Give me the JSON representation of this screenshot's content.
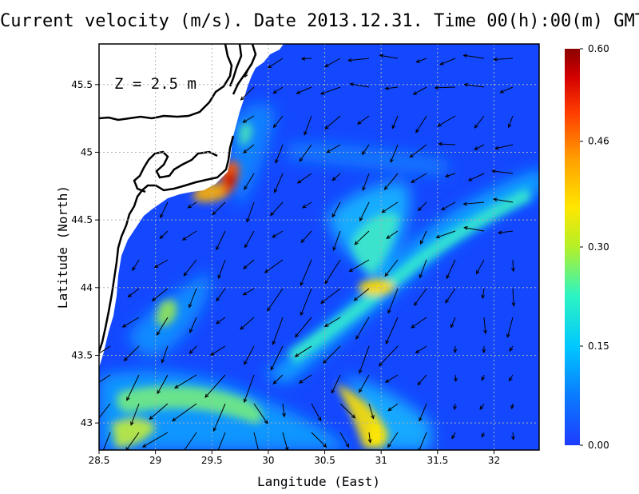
{
  "title": "Current velocity (m/s). Date 2013.12.31. Time 00(h):00(m) GMT",
  "depth_label": "Z = 2.5 m",
  "x_axis": {
    "label": "Langitude (East)",
    "ticks": [
      "28.5",
      "29",
      "29.5",
      "30",
      "30.5",
      "31",
      "31.5",
      "32"
    ],
    "range": [
      28.5,
      32.4
    ]
  },
  "y_axis": {
    "label": "Latitude (North)",
    "ticks": [
      "43",
      "43.5",
      "44",
      "44.5",
      "45",
      "45.5"
    ],
    "range": [
      42.8,
      45.8
    ]
  },
  "colorbar": {
    "ticks": [
      "0.00",
      "0.15",
      "0.30",
      "0.46",
      "0.60"
    ],
    "range": [
      0.0,
      0.6
    ],
    "colors": [
      "#1e3cff",
      "#0a78ff",
      "#00c8ff",
      "#2ef5c0",
      "#b4f028",
      "#ffe600",
      "#ffa000",
      "#ff3c00",
      "#d20000",
      "#8c0000"
    ]
  },
  "grid": true,
  "land_color": "#ffffff",
  "chart_data": {
    "type": "heatmap",
    "title": "Current velocity (m/s). Date 2013.12.31. Time 00(h):00(m) GMT",
    "xlabel": "Langitude (East)",
    "ylabel": "Latitude (North)",
    "xlim": [
      28.5,
      32.4
    ],
    "ylim": [
      42.8,
      45.8
    ],
    "zlim": [
      0.0,
      0.6
    ],
    "hotspots": [
      {
        "lon": 29.65,
        "lat": 44.75,
        "speed": 0.58
      },
      {
        "lon": 29.45,
        "lat": 44.68,
        "speed": 0.5
      },
      {
        "lon": 31.0,
        "lat": 44.0,
        "speed": 0.4
      },
      {
        "lon": 30.9,
        "lat": 42.95,
        "speed": 0.42
      },
      {
        "lon": 29.2,
        "lat": 43.2,
        "speed": 0.36
      }
    ]
  }
}
